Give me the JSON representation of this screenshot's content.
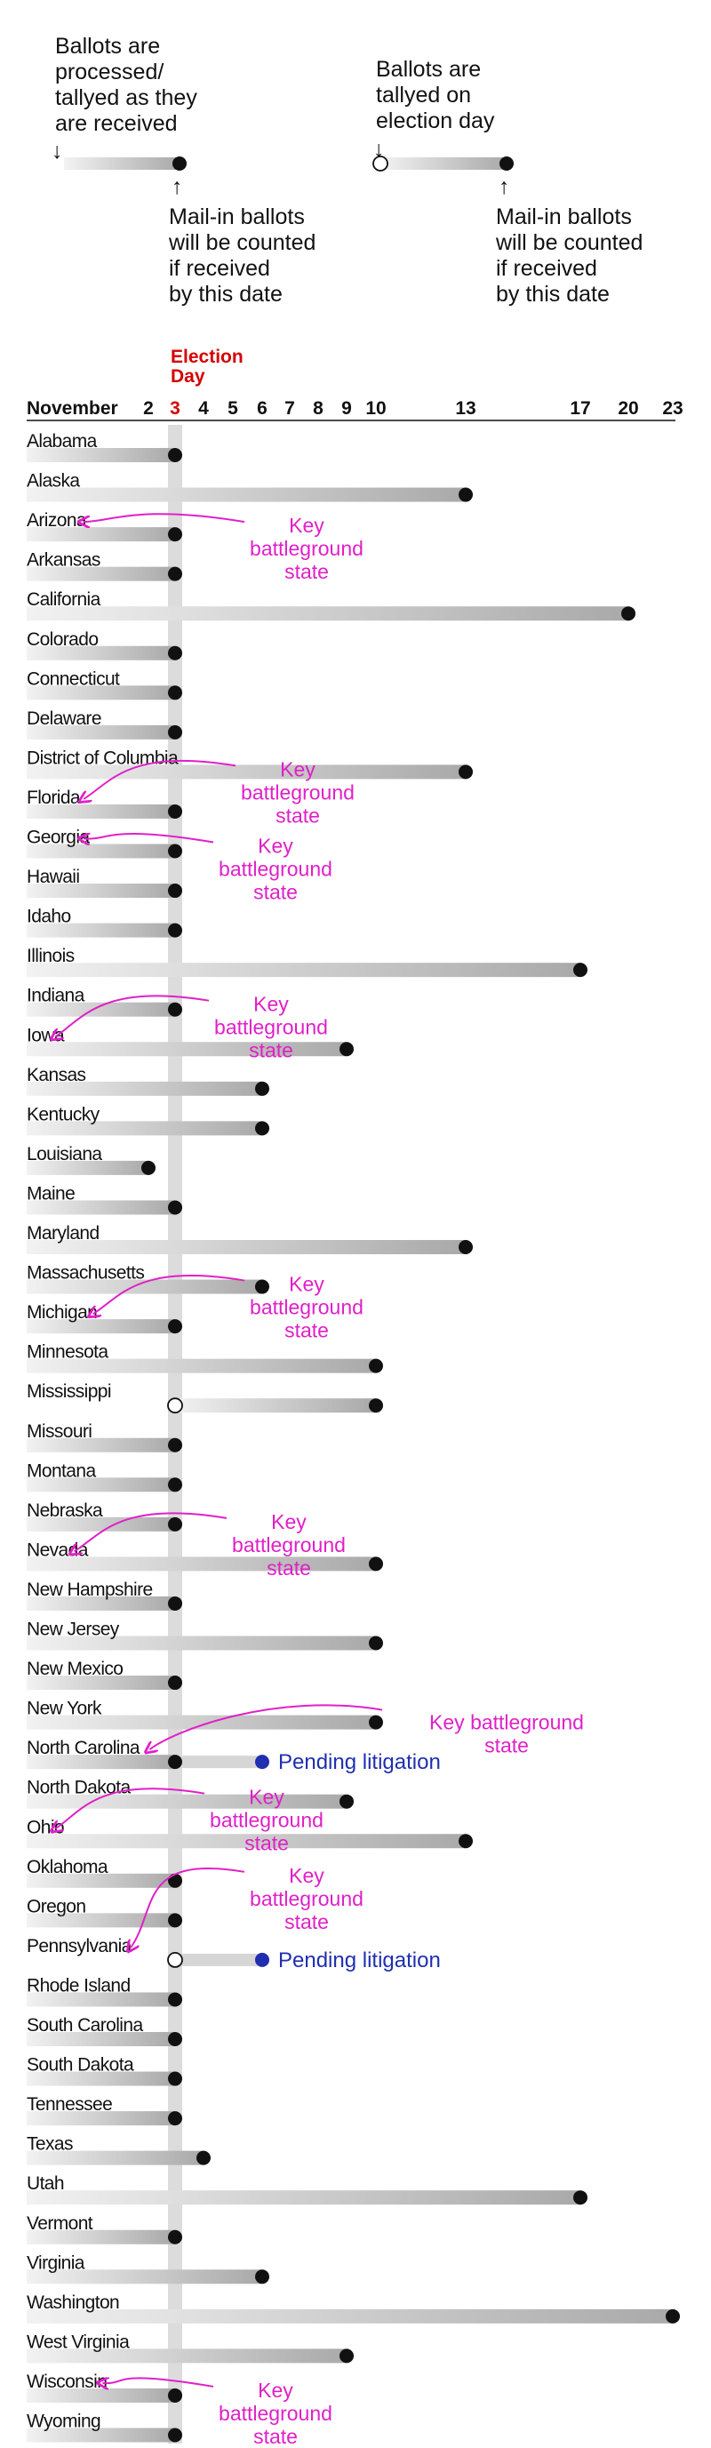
{
  "legend": {
    "left": {
      "top_text": [
        "Ballots are",
        "processed/",
        "tallyed as they",
        "are received"
      ],
      "bottom_text": [
        "Mail-in ballots",
        "will be counted",
        "if received",
        "by this date"
      ],
      "arrow_down": "↓",
      "arrow_up": "↑"
    },
    "right": {
      "top_text": [
        "Ballots are",
        "tallyed on",
        "election day"
      ],
      "bottom_text": [
        "Mail-in ballots",
        "will be counted",
        "if received",
        "by this date"
      ],
      "arrow_down": "↓",
      "arrow_up": "↑"
    }
  },
  "chart_data": {
    "type": "range-dot",
    "x_label": "November",
    "election_day_label": [
      "Election",
      "Day"
    ],
    "election_day": 3,
    "x_ticks": [
      2,
      3,
      4,
      5,
      6,
      7,
      8,
      9,
      10,
      13,
      17,
      20,
      23
    ],
    "states": [
      {
        "name": "Alabama",
        "deadline": 3,
        "start": "received"
      },
      {
        "name": "Alaska",
        "deadline": 13,
        "start": "received"
      },
      {
        "name": "Arizona",
        "deadline": 3,
        "start": "received"
      },
      {
        "name": "Arkansas",
        "deadline": 3,
        "start": "received"
      },
      {
        "name": "California",
        "deadline": 20,
        "start": "received"
      },
      {
        "name": "Colorado",
        "deadline": 3,
        "start": "received"
      },
      {
        "name": "Connecticut",
        "deadline": 3,
        "start": "received"
      },
      {
        "name": "Delaware",
        "deadline": 3,
        "start": "received"
      },
      {
        "name": "District of Columbia",
        "deadline": 13,
        "start": "received"
      },
      {
        "name": "Florida",
        "deadline": 3,
        "start": "received"
      },
      {
        "name": "Georgia",
        "deadline": 3,
        "start": "received"
      },
      {
        "name": "Hawaii",
        "deadline": 3,
        "start": "received"
      },
      {
        "name": "Idaho",
        "deadline": 3,
        "start": "received"
      },
      {
        "name": "Illinois",
        "deadline": 17,
        "start": "received"
      },
      {
        "name": "Indiana",
        "deadline": 3,
        "start": "received"
      },
      {
        "name": "Iowa",
        "deadline": 9,
        "start": "received"
      },
      {
        "name": "Kansas",
        "deadline": 6,
        "start": "received"
      },
      {
        "name": "Kentucky",
        "deadline": 6,
        "start": "received"
      },
      {
        "name": "Louisiana",
        "deadline": 2,
        "start": "received"
      },
      {
        "name": "Maine",
        "deadline": 3,
        "start": "received"
      },
      {
        "name": "Maryland",
        "deadline": 13,
        "start": "received"
      },
      {
        "name": "Massachusetts",
        "deadline": 6,
        "start": "received"
      },
      {
        "name": "Michigan",
        "deadline": 3,
        "start": "received"
      },
      {
        "name": "Minnesota",
        "deadline": 10,
        "start": "received"
      },
      {
        "name": "Mississippi",
        "deadline": 10,
        "start": "election_day"
      },
      {
        "name": "Missouri",
        "deadline": 3,
        "start": "received"
      },
      {
        "name": "Montana",
        "deadline": 3,
        "start": "received"
      },
      {
        "name": "Nebraska",
        "deadline": 3,
        "start": "received"
      },
      {
        "name": "Nevada",
        "deadline": 10,
        "start": "received"
      },
      {
        "name": "New Hampshire",
        "deadline": 3,
        "start": "received"
      },
      {
        "name": "New Jersey",
        "deadline": 10,
        "start": "received"
      },
      {
        "name": "New Mexico",
        "deadline": 3,
        "start": "received"
      },
      {
        "name": "New York",
        "deadline": 10,
        "start": "received"
      },
      {
        "name": "North Carolina",
        "deadline": 3,
        "start": "received",
        "pending_until": 6
      },
      {
        "name": "North Dakota",
        "deadline": 9,
        "start": "received"
      },
      {
        "name": "Ohio",
        "deadline": 13,
        "start": "received"
      },
      {
        "name": "Oklahoma",
        "deadline": 3,
        "start": "received"
      },
      {
        "name": "Oregon",
        "deadline": 3,
        "start": "received"
      },
      {
        "name": "Pennsylvania",
        "deadline": 3,
        "start": "election_day",
        "pending_until": 6
      },
      {
        "name": "Rhode Island",
        "deadline": 3,
        "start": "received"
      },
      {
        "name": "South Carolina",
        "deadline": 3,
        "start": "received"
      },
      {
        "name": "South Dakota",
        "deadline": 3,
        "start": "received"
      },
      {
        "name": "Tennessee",
        "deadline": 3,
        "start": "received"
      },
      {
        "name": "Texas",
        "deadline": 4,
        "start": "received"
      },
      {
        "name": "Utah",
        "deadline": 17,
        "start": "received"
      },
      {
        "name": "Vermont",
        "deadline": 3,
        "start": "received"
      },
      {
        "name": "Virginia",
        "deadline": 6,
        "start": "received"
      },
      {
        "name": "Washington",
        "deadline": 23,
        "start": "received"
      },
      {
        "name": "West Virginia",
        "deadline": 9,
        "start": "received"
      },
      {
        "name": "Wisconsin",
        "deadline": 3,
        "start": "received"
      },
      {
        "name": "Wyoming",
        "deadline": 3,
        "start": "received"
      }
    ],
    "pending_label": "Pending litigation",
    "battleground_annotations": [
      {
        "lines": [
          "Key",
          "battleground",
          "state"
        ],
        "states": [
          "Arizona"
        ],
        "anchor_state": "Arizona"
      },
      {
        "lines": [
          "Key",
          "battleground",
          "state"
        ],
        "states": [
          "Florida"
        ],
        "anchor_state": "District of Columbia"
      },
      {
        "lines": [
          "Key",
          "battleground",
          "state"
        ],
        "states": [
          "Georgia"
        ],
        "anchor_state": "Georgia"
      },
      {
        "lines": [
          "Key",
          "battleground",
          "state"
        ],
        "states": [
          "Iowa"
        ],
        "anchor_state": "Indiana"
      },
      {
        "lines": [
          "Key",
          "battleground",
          "state"
        ],
        "states": [
          "Michigan"
        ],
        "anchor_state": "Massachusetts"
      },
      {
        "lines": [
          "Key",
          "battleground",
          "state"
        ],
        "states": [
          "Nevada"
        ],
        "anchor_state": "Nebraska"
      },
      {
        "lines": [
          "Key battleground",
          "state"
        ],
        "states": [
          "North Carolina"
        ],
        "anchor_state": "New York"
      },
      {
        "lines": [
          "Key",
          "battleground",
          "state"
        ],
        "states": [
          "Ohio"
        ],
        "anchor_state": "North Dakota"
      },
      {
        "lines": [
          "Key",
          "battleground",
          "state"
        ],
        "states": [
          "Pennsylvania"
        ],
        "anchor_state": "Oklahoma"
      },
      {
        "lines": [
          "Key",
          "battleground",
          "state"
        ],
        "states": [
          "Wisconsin"
        ],
        "anchor_state": "Wisconsin"
      }
    ],
    "colors": {
      "dot": "#111111",
      "bar_dark": "#a9a9a9",
      "bar_light": "#f2f2f2",
      "election_band": "#dcdcdc",
      "election_label": "#d40000",
      "annotation": "#e020c8",
      "pending": "#1f2fb0"
    }
  }
}
